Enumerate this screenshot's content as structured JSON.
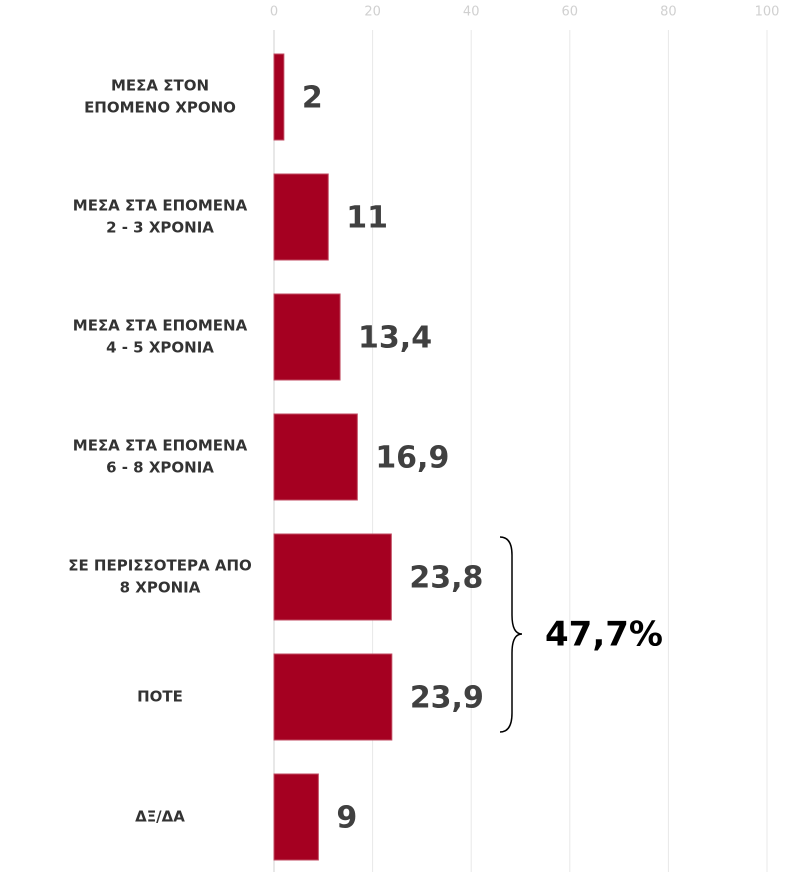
{
  "chart_data": {
    "type": "barh",
    "categories": [
      [
        "ΜΕΣΑ ΣΤΟΝ",
        "ΕΠΟΜΕΝΟ ΧΡΟΝΟ"
      ],
      [
        "ΜΕΣΑ ΣΤΑ ΕΠΟΜΕΝΑ",
        "2 - 3 ΧΡΟΝΙΑ"
      ],
      [
        "ΜΕΣΑ ΣΤΑ ΕΠΟΜΕΝΑ",
        "4 - 5 ΧΡΟΝΙΑ"
      ],
      [
        "ΜΕΣΑ ΣΤΑ ΕΠΟΜΕΝΑ",
        "6 - 8 ΧΡΟΝΙΑ"
      ],
      [
        "ΣΕ ΠΕΡΙΣΣΟΤΕΡΑ ΑΠΟ",
        "8 ΧΡΟΝΙΑ"
      ],
      [
        "ΠΟΤΕ"
      ],
      [
        "ΔΞ/ΔΑ"
      ]
    ],
    "values": [
      2,
      11,
      13.4,
      16.9,
      23.8,
      23.9,
      9
    ],
    "value_labels": [
      "2",
      "11",
      "13,4",
      "16,9",
      "23,8",
      "23,9",
      "9"
    ],
    "color": "#a50021",
    "xlim": [
      0,
      100
    ],
    "xticks": [
      0,
      20,
      40,
      60,
      80,
      100
    ],
    "grid": true,
    "annotation": "47,7%"
  }
}
